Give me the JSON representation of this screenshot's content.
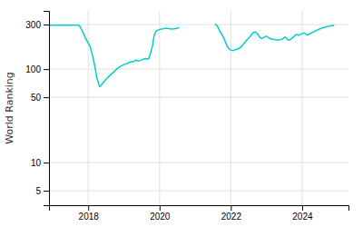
{
  "chart_data": {
    "type": "line",
    "ylabel": "World Ranking",
    "log": "y",
    "grid": true,
    "xlim": [
      2016.9,
      2025.3
    ],
    "xticks": [
      2018,
      2020,
      2022,
      2024
    ],
    "ylim": [
      3.5,
      420
    ],
    "yticks": [
      5,
      10,
      50,
      100,
      300
    ],
    "series": [
      {
        "color": "#00CED1",
        "x": [
          2016.92,
          2017.0,
          2017.1,
          2017.2,
          2017.3,
          2017.4,
          2017.5,
          2017.6,
          2017.7,
          2017.75,
          2017.85,
          2017.92,
          2018.0,
          2018.05,
          2018.08,
          2018.12,
          2018.16,
          2018.2,
          2018.24,
          2018.28,
          2018.32,
          2018.36,
          2018.4,
          2018.5,
          2018.6,
          2018.7,
          2018.8,
          2018.9,
          2019.0,
          2019.1,
          2019.15,
          2019.2,
          2019.25,
          2019.3,
          2019.35,
          2019.4,
          2019.45,
          2019.5,
          2019.55,
          2019.6,
          2019.65,
          2019.7,
          2019.75,
          2019.8,
          2019.85,
          2019.9,
          2019.95,
          2020.0,
          2020.05,
          2020.1,
          2020.15,
          2020.2,
          2020.25,
          2020.3,
          2020.35,
          2020.4,
          2020.45,
          2020.5,
          2020.55
        ],
        "values": [
          295,
          295,
          295,
          295,
          295,
          295,
          295,
          295,
          295,
          293,
          250,
          215,
          190,
          175,
          160,
          140,
          120,
          100,
          82,
          72,
          65,
          67,
          70,
          78,
          85,
          92,
          100,
          107,
          112,
          115,
          118,
          120,
          120,
          122,
          125,
          122,
          123,
          125,
          128,
          130,
          128,
          130,
          150,
          175,
          230,
          255,
          260,
          265,
          268,
          270,
          273,
          275,
          272,
          270,
          268,
          270,
          272,
          275,
          277
        ]
      },
      {
        "color": "#00CED1",
        "x": [
          2021.55,
          2021.58,
          2021.6,
          2021.63,
          2021.67,
          2021.7,
          2021.75,
          2021.8,
          2021.85,
          2021.9,
          2021.95,
          2022.0,
          2022.05,
          2022.1,
          2022.15,
          2022.2,
          2022.25,
          2022.3,
          2022.35,
          2022.4,
          2022.45,
          2022.5,
          2022.55,
          2022.58,
          2022.62,
          2022.65,
          2022.68,
          2022.7,
          2022.72,
          2022.75,
          2022.78,
          2022.8,
          2022.83,
          2022.85,
          2022.87,
          2022.9,
          2022.92,
          2022.95,
          2022.97,
          2023.0,
          2023.02,
          2023.05,
          2023.08,
          2023.1,
          2023.15,
          2023.2,
          2023.25,
          2023.3,
          2023.35,
          2023.4,
          2023.45,
          2023.48,
          2023.52,
          2023.55,
          2023.58,
          2023.6,
          2023.65,
          2023.67,
          2023.7,
          2023.72,
          2023.75,
          2023.78,
          2023.8,
          2023.82,
          2023.85,
          2023.87,
          2023.9,
          2023.92,
          2023.95,
          2023.97,
          2024.0,
          2024.02,
          2024.05,
          2024.07,
          2024.1,
          2024.12,
          2024.15,
          2024.17,
          2024.2,
          2024.22,
          2024.25,
          2024.27,
          2024.3,
          2024.33,
          2024.36,
          2024.4,
          2024.45,
          2024.5,
          2024.55,
          2024.6,
          2024.65,
          2024.7,
          2024.75,
          2024.8,
          2024.85,
          2024.9
        ],
        "values": [
          302,
          300,
          295,
          285,
          265,
          250,
          235,
          215,
          195,
          175,
          165,
          160,
          158,
          160,
          162,
          165,
          168,
          175,
          185,
          195,
          205,
          215,
          225,
          235,
          245,
          248,
          250,
          248,
          243,
          238,
          230,
          222,
          218,
          215,
          213,
          215,
          218,
          220,
          223,
          225,
          222,
          218,
          215,
          212,
          210,
          208,
          206,
          205,
          205,
          207,
          210,
          215,
          220,
          215,
          210,
          205,
          205,
          208,
          212,
          215,
          220,
          225,
          230,
          233,
          235,
          233,
          230,
          232,
          235,
          238,
          240,
          242,
          244,
          242,
          238,
          235,
          233,
          235,
          238,
          240,
          242,
          245,
          248,
          252,
          255,
          260,
          265,
          270,
          275,
          278,
          282,
          285,
          288,
          290,
          292,
          293
        ]
      }
    ]
  }
}
